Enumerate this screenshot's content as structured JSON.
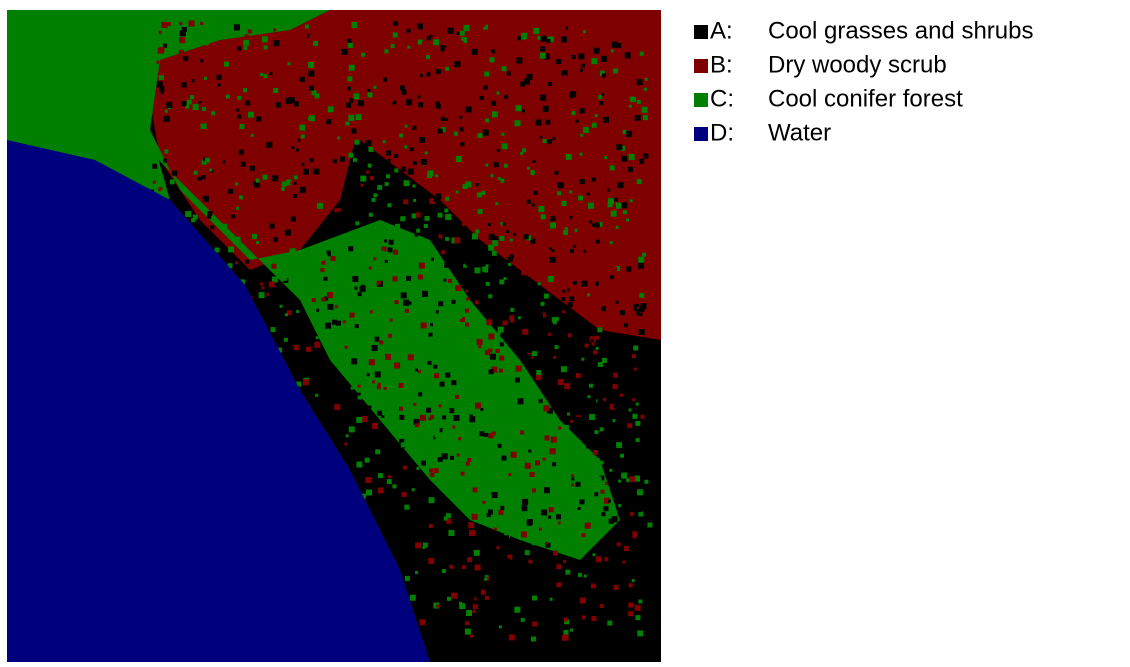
{
  "legend": [
    {
      "key": "A:",
      "label": "Cool grasses and shrubs",
      "color": "#000000"
    },
    {
      "key": "B:",
      "label": "Dry woody scrub",
      "color": "#7f0000"
    },
    {
      "key": "C:",
      "label": "Cool conifer forest",
      "color": "#007f00"
    },
    {
      "key": "D:",
      "label": "Water",
      "color": "#00007f"
    }
  ]
}
